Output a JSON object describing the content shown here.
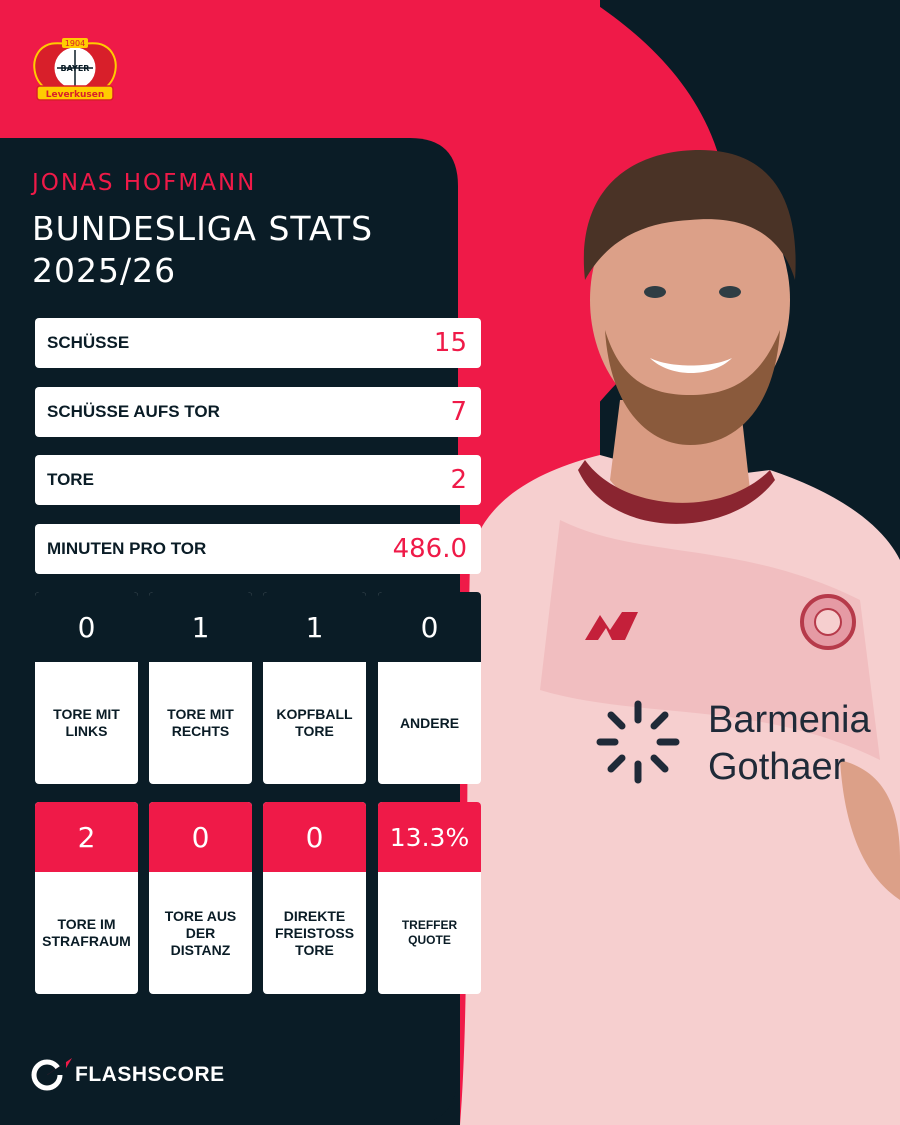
{
  "club": {
    "logo_icon": "bayer-leverkusen-crest",
    "logo_year": "1904",
    "logo_name_top": "BAYER",
    "logo_name_bottom": "Leverkusen"
  },
  "header": {
    "player_name": "JONAS HOFMANN",
    "title_line1": "BUNDESLIGA STATS",
    "title_line2": "2025/26"
  },
  "stat_rows": [
    {
      "label": "SCHÜSSE",
      "value": "15"
    },
    {
      "label": "SCHÜSSE AUFS TOR",
      "value": "7"
    },
    {
      "label": "TORE",
      "value": "2"
    },
    {
      "label": "MINUTEN PRO TOR",
      "value": "486.0"
    }
  ],
  "tiles_row1": [
    {
      "value": "0",
      "label_l1": "TORE MIT",
      "label_l2": "LINKS",
      "label_l3": ""
    },
    {
      "value": "1",
      "label_l1": "TORE MIT",
      "label_l2": "RECHTS",
      "label_l3": ""
    },
    {
      "value": "1",
      "label_l1": "KOPFBALL",
      "label_l2": "TORE",
      "label_l3": ""
    },
    {
      "value": "0",
      "label_l1": "ANDERE",
      "label_l2": "",
      "label_l3": ""
    }
  ],
  "tiles_row2": [
    {
      "value": "2",
      "label_l1": "TORE IM",
      "label_l2": "STRAFRAUM",
      "label_l3": ""
    },
    {
      "value": "0",
      "label_l1": "TORE AUS",
      "label_l2": "DER",
      "label_l3": "DISTANZ"
    },
    {
      "value": "0",
      "label_l1": "DIREKTE",
      "label_l2": "FREISTOSS",
      "label_l3": "TORE"
    },
    {
      "value": "13.3%",
      "label_l1": "TREFFER",
      "label_l2": "QUOTE",
      "label_l3": ""
    }
  ],
  "jersey": {
    "kit_brand": "NB",
    "sponsor_line1": "Barmenia",
    "sponsor_line2": "Gothaer"
  },
  "footer": {
    "brand": "FLASHSCORE",
    "brand_icon": "flashscore-logo-icon"
  },
  "colors": {
    "background": "#0a1c26",
    "accent": "#ef1a48",
    "card": "#ffffff",
    "jersey": "#f6cfcf"
  }
}
